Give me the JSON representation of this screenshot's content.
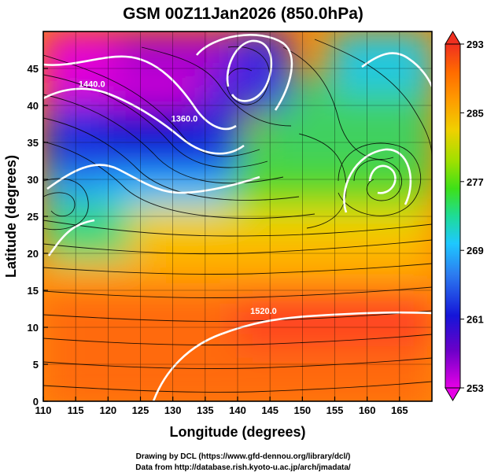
{
  "title": "GSM 00Z11Jan2026 (850.0hPa)",
  "xaxis": {
    "label": "Longitude (degrees)",
    "range": [
      110,
      170
    ],
    "ticks": [
      110,
      115,
      120,
      125,
      130,
      135,
      140,
      145,
      150,
      155,
      160,
      165
    ]
  },
  "yaxis": {
    "label": "Latitude  (degrees)",
    "range": [
      0,
      50
    ],
    "ticks": [
      0,
      5,
      10,
      15,
      20,
      25,
      30,
      35,
      40,
      45
    ]
  },
  "colorbar": {
    "range": [
      253,
      293
    ],
    "ticks": [
      253,
      261,
      269,
      277,
      285,
      293
    ],
    "colors": [
      "#e600e6",
      "#6a00c8",
      "#1515d8",
      "#2c7cf0",
      "#1ec8ff",
      "#1edc96",
      "#3ee018",
      "#a0e000",
      "#f0d000",
      "#ff9a00",
      "#ff6a00",
      "#f03020"
    ]
  },
  "contour_labels": [
    {
      "text": "1440.0",
      "lon": 117.5,
      "lat": 42.5
    },
    {
      "text": "1360.0",
      "lon": 131.8,
      "lat": 37.8
    },
    {
      "text": "1520.0",
      "lon": 144.0,
      "lat": 11.8
    }
  ],
  "credits": [
    "Drawing by DCL (https://www.gfd-dennou.org/library/dcl/)",
    "Data from http://database.rish.kyoto-u.ac.jp/arch/jmadata/"
  ]
}
